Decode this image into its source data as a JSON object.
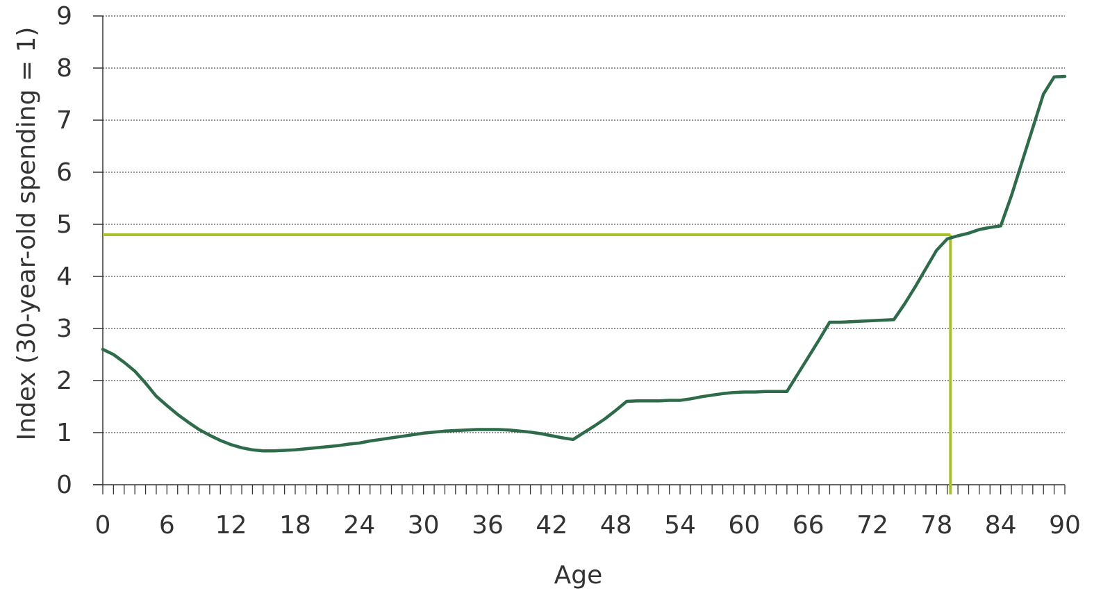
{
  "chart_data": {
    "type": "line",
    "title": "",
    "xlabel": "Age",
    "ylabel": "Index (30-year-old spending = 1)",
    "xlim": [
      0,
      90
    ],
    "ylim": [
      0,
      9
    ],
    "x_ticks": [
      "0",
      "6",
      "12",
      "18",
      "24",
      "30",
      "36",
      "42",
      "48",
      "54",
      "60",
      "66",
      "72",
      "78",
      "84",
      "90"
    ],
    "y_ticks": [
      "0",
      "1",
      "2",
      "3",
      "4",
      "5",
      "6",
      "7",
      "8",
      "9"
    ],
    "grid": "horizontal-dotted",
    "colors": {
      "series": "#2e6b4a",
      "highlight": "#a9c12a",
      "axis": "#333333",
      "grid": "#555555"
    },
    "series": [
      {
        "x": [
          0,
          1,
          2,
          3,
          4,
          5,
          6,
          7,
          8,
          9,
          10,
          11,
          12,
          13,
          14,
          15,
          16,
          17,
          18,
          19,
          20,
          21,
          22,
          23,
          24,
          25,
          26,
          27,
          28,
          29,
          30,
          31,
          32,
          33,
          34,
          35,
          36,
          37,
          38,
          39,
          40,
          41,
          42,
          43,
          44,
          45,
          46,
          47,
          48,
          49,
          50,
          51,
          52,
          53,
          54,
          55,
          56,
          57,
          58,
          59,
          60,
          61,
          62,
          63,
          64,
          65,
          66,
          67,
          68,
          69,
          70,
          71,
          72,
          73,
          74,
          75,
          76,
          77,
          78,
          79,
          80,
          81,
          82,
          83,
          84,
          85,
          86,
          87,
          88,
          89,
          90
        ],
        "values": [
          2.6,
          2.5,
          2.35,
          2.18,
          1.95,
          1.7,
          1.52,
          1.35,
          1.2,
          1.06,
          0.95,
          0.85,
          0.77,
          0.71,
          0.67,
          0.65,
          0.65,
          0.66,
          0.67,
          0.69,
          0.71,
          0.73,
          0.75,
          0.78,
          0.8,
          0.84,
          0.87,
          0.9,
          0.93,
          0.96,
          0.99,
          1.01,
          1.03,
          1.04,
          1.05,
          1.06,
          1.06,
          1.06,
          1.05,
          1.03,
          1.01,
          0.98,
          0.94,
          0.9,
          0.87,
          1.0,
          1.13,
          1.27,
          1.43,
          1.6,
          1.61,
          1.61,
          1.61,
          1.62,
          1.62,
          1.65,
          1.69,
          1.72,
          1.75,
          1.77,
          1.78,
          1.78,
          1.79,
          1.79,
          1.79,
          2.12,
          2.45,
          2.78,
          3.12,
          3.12,
          3.13,
          3.14,
          3.15,
          3.16,
          3.17,
          3.47,
          3.8,
          4.15,
          4.5,
          4.72,
          4.78,
          4.83,
          4.9,
          4.94,
          4.97,
          5.55,
          6.2,
          6.85,
          7.5,
          7.83,
          7.84
        ]
      }
    ],
    "highlight": {
      "x": 79.3,
      "y": 4.8
    }
  }
}
